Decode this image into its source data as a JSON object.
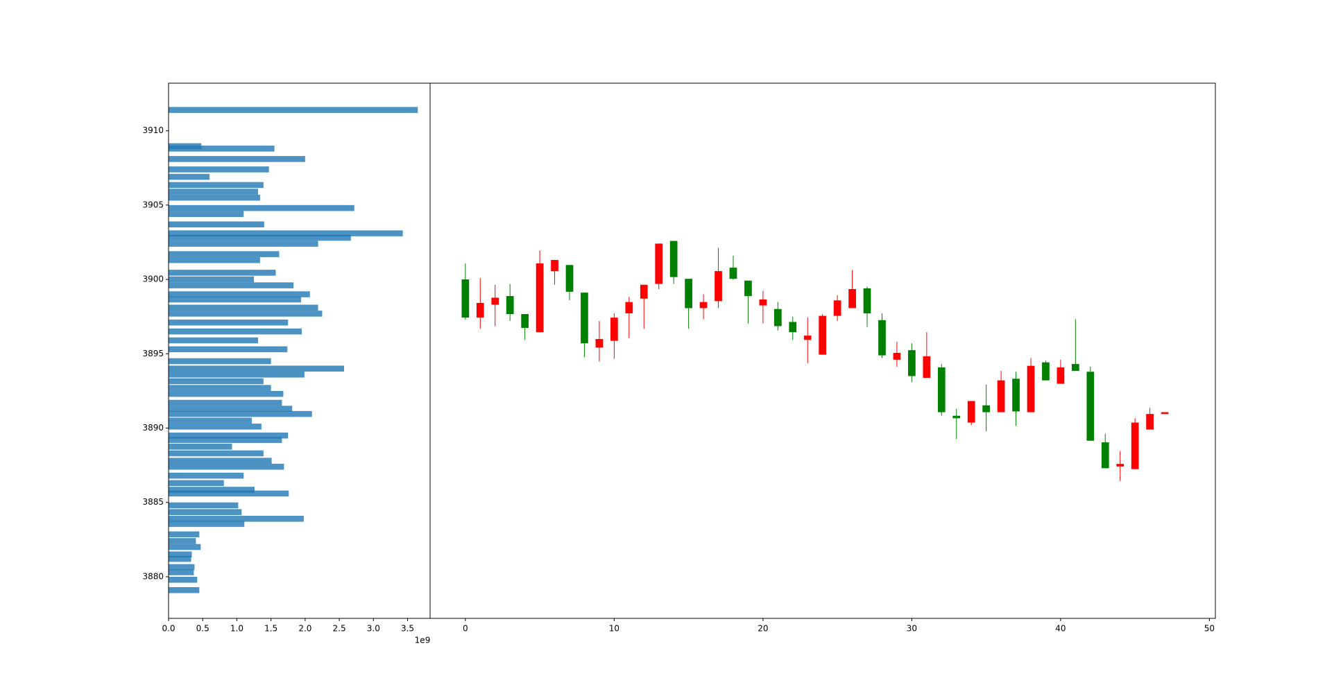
{
  "chart_data": [
    {
      "type": "barh",
      "color": "#1f77b4",
      "y": [
        3911.4,
        3908.96,
        3908.8,
        3908.1,
        3907.4,
        3906.9,
        3906.35,
        3905.9,
        3905.5,
        3904.8,
        3904.4,
        3903.7,
        3903.1,
        3902.8,
        3902.4,
        3901.7,
        3901.3,
        3900.45,
        3900.0,
        3899.6,
        3899.0,
        3898.65,
        3898.1,
        3897.7,
        3897.1,
        3896.5,
        3895.9,
        3895.3,
        3894.5,
        3894.0,
        3893.6,
        3893.15,
        3892.7,
        3892.3,
        3891.7,
        3891.3,
        3890.95,
        3890.5,
        3890.1,
        3889.5,
        3889.2,
        3888.75,
        3888.3,
        3887.8,
        3887.4,
        3886.8,
        3886.3,
        3885.85,
        3885.6,
        3884.8,
        3884.35,
        3883.9,
        3883.55,
        3882.85,
        3882.4,
        3882.0,
        3881.5,
        3881.2,
        3880.65,
        3880.3,
        3879.8,
        3879.1
      ],
      "values": [
        3.65,
        0.48,
        1.55,
        2.0,
        1.47,
        0.6,
        1.39,
        1.31,
        1.34,
        2.72,
        1.1,
        1.4,
        3.43,
        2.67,
        2.19,
        1.62,
        1.34,
        1.57,
        1.25,
        1.83,
        2.07,
        1.94,
        2.19,
        2.25,
        1.75,
        1.95,
        1.31,
        1.74,
        1.5,
        2.57,
        1.99,
        1.39,
        1.5,
        1.68,
        1.66,
        1.81,
        2.1,
        1.22,
        1.36,
        1.75,
        1.66,
        0.93,
        1.39,
        1.51,
        1.69,
        1.1,
        0.81,
        1.26,
        1.76,
        1.02,
        1.07,
        1.98,
        1.11,
        0.45,
        0.4,
        0.47,
        0.34,
        0.33,
        0.38,
        0.37,
        0.42,
        0.45
      ],
      "xlim": [
        0,
        3.83
      ],
      "xticks": [
        {
          "value": 0,
          "label": "0.0"
        },
        {
          "value": 0.5,
          "label": "0.5"
        },
        {
          "value": 1,
          "label": "1.0"
        },
        {
          "value": 1.5,
          "label": "1.5"
        },
        {
          "value": 2,
          "label": "2.0"
        },
        {
          "value": 2.5,
          "label": "2.5"
        },
        {
          "value": 3,
          "label": "3.0"
        },
        {
          "value": 3.5,
          "label": "3.5"
        }
      ],
      "x_offset_label": "1e9",
      "ylim": [
        3877.2,
        3913.2
      ],
      "yticks": [
        3880,
        3885,
        3890,
        3895,
        3900,
        3905,
        3910
      ]
    },
    {
      "type": "candlestick",
      "up_color": "#ff0000",
      "down_color": "#008000",
      "x": [
        0,
        1,
        2,
        3,
        4,
        5,
        6,
        7,
        8,
        9,
        10,
        11,
        12,
        13,
        14,
        15,
        16,
        17,
        18,
        19,
        20,
        21,
        22,
        23,
        24,
        25,
        26,
        27,
        28,
        29,
        30,
        31,
        32,
        33,
        34,
        35,
        36,
        37,
        38,
        39,
        40,
        41,
        42,
        43,
        44,
        45,
        46,
        47
      ],
      "open": [
        3900.0,
        3897.43,
        3898.3,
        3898.88,
        3897.67,
        3896.45,
        3900.56,
        3900.97,
        3899.11,
        3895.42,
        3895.87,
        3897.72,
        3898.71,
        3899.7,
        3902.59,
        3900.04,
        3898.07,
        3898.54,
        3900.79,
        3899.92,
        3898.25,
        3898.01,
        3897.14,
        3895.93,
        3894.94,
        3897.55,
        3898.07,
        3899.4,
        3897.26,
        3894.6,
        3895.24,
        3893.38,
        3894.08,
        3890.83,
        3890.37,
        3891.53,
        3891.07,
        3893.32,
        3891.07,
        3894.42,
        3892.98,
        3894.31,
        3893.79,
        3889.04,
        3887.42,
        3887.24,
        3889.9,
        3890.95
      ],
      "high": [
        3901.08,
        3900.1,
        3899.64,
        3899.7,
        3897.67,
        3901.95,
        3901.31,
        3900.97,
        3899.11,
        3897.2,
        3897.72,
        3898.82,
        3899.64,
        3902.41,
        3902.59,
        3900.04,
        3899.0,
        3902.13,
        3901.6,
        3899.92,
        3899.23,
        3898.48,
        3897.49,
        3897.43,
        3897.67,
        3898.94,
        3900.62,
        3899.52,
        3897.72,
        3895.81,
        3895.7,
        3896.45,
        3894.31,
        3891.3,
        3891.82,
        3892.92,
        3893.85,
        3893.79,
        3894.71,
        3894.54,
        3894.6,
        3897.32,
        3894.13,
        3889.62,
        3888.46,
        3890.66,
        3891.36,
        3891.07
      ],
      "low": [
        3897.3,
        3896.68,
        3896.86,
        3897.2,
        3895.93,
        3896.45,
        3899.64,
        3898.6,
        3894.77,
        3894.48,
        3894.66,
        3896.04,
        3896.68,
        3899.35,
        3899.7,
        3896.68,
        3897.32,
        3898.07,
        3899.98,
        3897.03,
        3897.03,
        3896.57,
        3895.93,
        3894.37,
        3894.94,
        3897.2,
        3898.07,
        3896.8,
        3894.71,
        3894.13,
        3893.09,
        3893.38,
        3890.83,
        3889.27,
        3890.2,
        3889.79,
        3891.07,
        3890.14,
        3891.07,
        3893.21,
        3892.98,
        3893.85,
        3889.15,
        3887.3,
        3886.43,
        3887.24,
        3889.9,
        3890.95
      ],
      "close": [
        3897.43,
        3898.42,
        3898.77,
        3897.67,
        3896.74,
        3901.08,
        3901.31,
        3899.17,
        3895.7,
        3895.99,
        3897.43,
        3898.48,
        3899.64,
        3902.41,
        3900.16,
        3898.07,
        3898.48,
        3900.56,
        3900.04,
        3898.88,
        3898.65,
        3896.86,
        3896.45,
        3896.22,
        3897.55,
        3898.59,
        3899.35,
        3897.72,
        3894.89,
        3895.06,
        3893.5,
        3894.83,
        3891.07,
        3890.66,
        3891.82,
        3891.07,
        3893.21,
        3891.12,
        3894.19,
        3893.21,
        3894.08,
        3893.85,
        3889.15,
        3887.3,
        3887.59,
        3890.37,
        3890.95,
        3891.07
      ],
      "xlim": [
        -2.37,
        50.4
      ],
      "xticks": [
        0,
        10,
        20,
        30,
        40,
        50
      ],
      "ylim": [
        3877.2,
        3913.2
      ]
    }
  ]
}
